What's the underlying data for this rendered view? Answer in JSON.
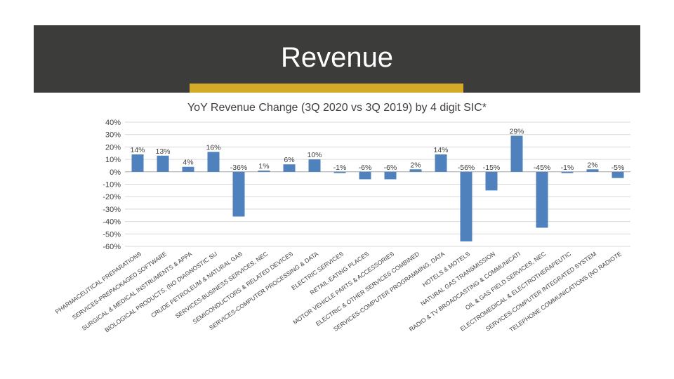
{
  "slide": {
    "title": "Revenue",
    "accent_color": "#d6aa29",
    "header_color": "#3c3c3b"
  },
  "chart_data": {
    "type": "bar",
    "title": "YoY Revenue Change (3Q 2020 vs 3Q 2019) by 4 digit SIC*",
    "xlabel": "",
    "ylabel": "",
    "ylim": [
      -0.6,
      0.4
    ],
    "yticks": [
      0.4,
      0.3,
      0.2,
      0.1,
      0.0,
      -0.1,
      -0.2,
      -0.3,
      -0.4,
      -0.5,
      -0.6
    ],
    "ytick_labels": [
      "40%",
      "30%",
      "20%",
      "10%",
      "0%",
      "-10%",
      "-20%",
      "-30%",
      "-40%",
      "-50%",
      "-60%"
    ],
    "grid": true,
    "bar_color": "#4f81bd",
    "categories": [
      "PHARMACEUTICAL PREPARATIONS",
      "SERVICES-PREPACKAGED SOFTWARE",
      "SURGICAL & MEDICAL INSTRUMENTS & APPA",
      "BIOLOGICAL PRODUCTS, (NO DIAGNOSTIC SU",
      "CRUDE PETROLEUM & NATURAL GAS",
      "SERVICES-BUSINESS SERVICES, NEC",
      "SEMICONDUCTORS & RELATED DEVICES",
      "SERVICES-COMPUTER PROCESSING & DATA",
      "ELECTRIC SERVICES",
      "RETAIL-EATING PLACES",
      "MOTOR VEHICLE PARTS & ACCESSORIES",
      "ELECTRIC & OTHER SERVICES COMBINED",
      "SERVICES-COMPUTER PROGRAMMING, DATA",
      "HOTELS & MOTELS",
      "NATURAL GAS TRANSMISSION",
      "RADIO & TV BROADCASTING & COMMUNICATI",
      "OIL & GAS FIELD SERVICES, NEC",
      "ELECTROMEDICAL & ELECTROTHERAPEUTIC",
      "SERVICES-COMPUTER INTEGRATED SYSTEM",
      "TELEPHONE COMMUNICATIONS (NO RADIOTE"
    ],
    "values": [
      0.14,
      0.13,
      0.04,
      0.16,
      -0.36,
      0.01,
      0.06,
      0.1,
      -0.01,
      -0.06,
      -0.06,
      0.02,
      0.14,
      -0.56,
      -0.15,
      0.29,
      -0.45,
      -0.01,
      0.02,
      -0.05
    ],
    "value_labels": [
      "14%",
      "13%",
      "4%",
      "16%",
      "-36%",
      "1%",
      "6%",
      "10%",
      "-1%",
      "-6%",
      "-6%",
      "2%",
      "14%",
      "-56%",
      "-15%",
      "29%",
      "-45%",
      "-1%",
      "2%",
      "-5%"
    ]
  }
}
